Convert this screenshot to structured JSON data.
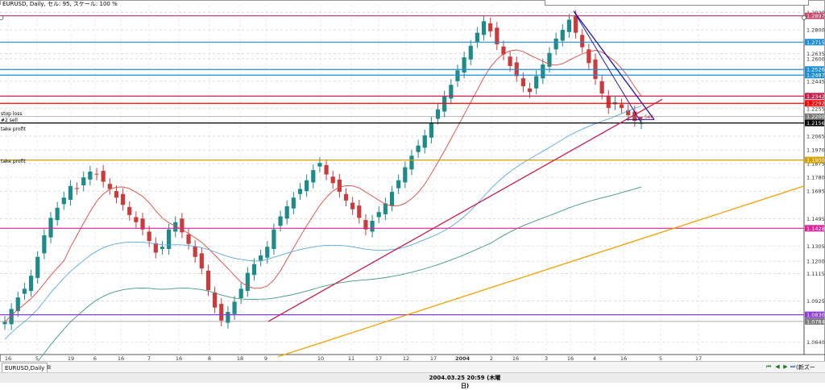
{
  "window": {
    "title": "EURUSD, Daily, セル: 95, スケール: 100 %",
    "tab_label": "EURUSD,Daily",
    "current_date": "2004.03.25 20:59 (木曜日)",
    "extra_label": "(新ズー"
  },
  "line_labels": {
    "stop_loss": "stop loss",
    "sell": "#2 sell",
    "take_profit_1": "take profit",
    "take_profit_2": "take profit",
    "sell_marker": "Sell"
  },
  "icons": {
    "tab_icon": "window-icon",
    "nav_first": "first-icon",
    "nav_prev": "prev-icon",
    "nav_play": "play-icon",
    "nav_last": "last-icon",
    "colors": {
      "candle_up": "#1e8a8a",
      "candle_down": "#c83c3c",
      "ma_fast": "#e0473f",
      "ma_mid": "#5aa9e6",
      "ma_slow": "#3f9b79",
      "trend_red": "#c81e4c",
      "trend_orange": "#f4a000",
      "trend_blue": "#1a1aa8"
    }
  },
  "chart_data": {
    "type": "candlestick",
    "symbol": "EURUSD",
    "timeframe": "Daily",
    "ylim": [
      1.0555,
      1.2973
    ],
    "y_ticks": [
      "1.2920",
      "1.2800",
      "1.2635",
      "1.2600",
      "1.2445",
      "1.2255",
      "1.2065",
      "1.1970",
      "1.1875",
      "1.1780",
      "1.1685",
      "1.1495",
      "1.1305",
      "1.1200",
      "1.1115",
      "1.0925",
      "1.0830",
      "1.0640"
    ],
    "x_ticks": [
      "16",
      "5",
      "19",
      "6",
      "16",
      "7",
      "16",
      "8",
      "18",
      "9",
      "10",
      "11",
      "17",
      "12",
      "17",
      "2004",
      "2",
      "16",
      "3",
      "16",
      "4",
      "16",
      "5",
      "17"
    ],
    "horizontal_lines": [
      {
        "price": 1.2897,
        "color": "#c9486e",
        "label": "1.2897"
      },
      {
        "price": 1.2715,
        "color": "#1e8fd6",
        "label": "1.2715"
      },
      {
        "price": 1.2526,
        "color": "#1e8fd6",
        "label": "1.2526"
      },
      {
        "price": 1.2487,
        "color": "#1e8fd6",
        "label": "1.2487"
      },
      {
        "price": 1.2342,
        "color": "#c81e4c",
        "label": "1.2342"
      },
      {
        "price": 1.2292,
        "color": "#ff0000",
        "label": "1.2292"
      },
      {
        "price": 1.22,
        "color": "#7a7a7a",
        "label": "1.2200"
      },
      {
        "price": 1.2156,
        "color": "#000000",
        "label": "1.2156"
      },
      {
        "price": 1.19,
        "color": "#d4a000",
        "label": "1.1900"
      },
      {
        "price": 1.1428,
        "color": "#e0229a",
        "label": "1.1428"
      },
      {
        "price": 1.083,
        "color": "#8a3bd8",
        "label": "1.0830"
      },
      {
        "price": 1.0784,
        "color": "#7a7a7a",
        "label": "1.0784"
      }
    ],
    "trendlines": [
      {
        "color": "#c81e4c",
        "from": {
          "x": "9",
          "y": 1.0784
        },
        "to": {
          "x": "4",
          "y": 1.232
        }
      },
      {
        "color": "#f4a000",
        "from": {
          "x": "9",
          "y": 1.054
        },
        "to": {
          "x": "17",
          "y": 1.172
        }
      },
      {
        "color": "#1a1aa8",
        "from": {
          "x": "16",
          "y": 1.293
        },
        "to": {
          "x": "4",
          "y": 1.218
        }
      }
    ],
    "bid_price": "1.2156",
    "close_series": [
      1.078,
      1.087,
      1.095,
      1.101,
      1.11,
      1.123,
      1.138,
      1.15,
      1.157,
      1.164,
      1.172,
      1.17,
      1.178,
      1.182,
      1.18,
      1.175,
      1.17,
      1.164,
      1.159,
      1.152,
      1.147,
      1.142,
      1.134,
      1.126,
      1.13,
      1.142,
      1.147,
      1.14,
      1.132,
      1.123,
      1.115,
      1.1,
      1.088,
      1.079,
      1.085,
      1.092,
      1.101,
      1.112,
      1.118,
      1.124,
      1.13,
      1.142,
      1.151,
      1.158,
      1.164,
      1.17,
      1.176,
      1.183,
      1.188,
      1.18,
      1.174,
      1.168,
      1.162,
      1.156,
      1.15,
      1.142,
      1.148,
      1.154,
      1.16,
      1.168,
      1.176,
      1.185,
      1.193,
      1.2,
      1.207,
      1.216,
      1.225,
      1.234,
      1.242,
      1.252,
      1.261,
      1.269,
      1.278,
      1.286,
      1.279,
      1.27,
      1.263,
      1.255,
      1.248,
      1.241,
      1.237,
      1.248,
      1.256,
      1.264,
      1.274,
      1.28,
      1.287,
      1.278,
      1.268,
      1.257,
      1.246,
      1.236,
      1.226,
      1.23,
      1.226,
      1.221,
      1.217,
      1.2156
    ],
    "moving_averages": [
      {
        "name": "",
        "color": "#e0473f",
        "period": 10
      },
      {
        "name": "",
        "color": "#5aa9e6",
        "period": 40
      },
      {
        "name": "",
        "color": "#3f9b79",
        "period": 75
      }
    ]
  }
}
